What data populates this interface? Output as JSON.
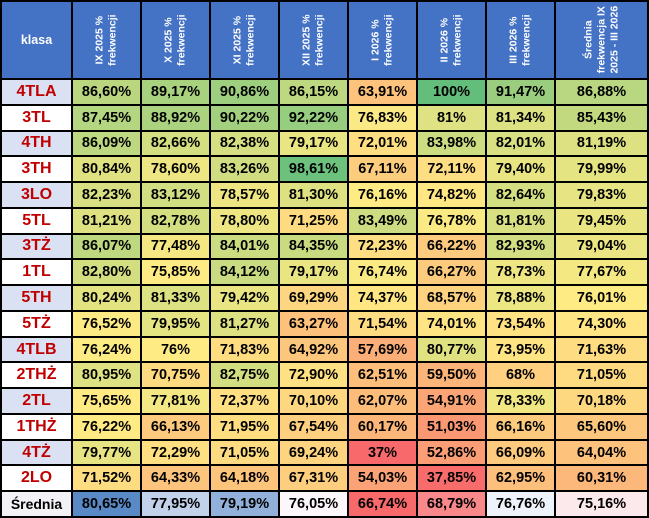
{
  "table": {
    "corner_label": "klasa",
    "columns": [
      "IX 2025 % frekwencji",
      "X 2025 % frekwencji",
      "XI 2025 % frekwencji",
      "XII 2025 % frekwencji",
      "I 2026 % frekwencji",
      "II 2026 % frekwencji",
      "III 2026 % frekwencji",
      "Średnia frekwencja IX 2025 - III 2026"
    ],
    "rows": [
      {
        "label": "4TLA",
        "values": [
          "86,60%",
          "89,17%",
          "90,86%",
          "86,15%",
          "63,91%",
          "100%",
          "91,47%",
          "86,88%"
        ]
      },
      {
        "label": "3TL",
        "values": [
          "87,45%",
          "88,92%",
          "90,22%",
          "92,22%",
          "76,83%",
          "81%",
          "81,34%",
          "85,43%"
        ]
      },
      {
        "label": "4TH",
        "values": [
          "86,09%",
          "82,66%",
          "82,38%",
          "79,17%",
          "72,01%",
          "83,98%",
          "82,01%",
          "81,19%"
        ]
      },
      {
        "label": "3TH",
        "values": [
          "80,84%",
          "78,60%",
          "83,26%",
          "98,61%",
          "67,11%",
          "72,11%",
          "79,40%",
          "79,99%"
        ]
      },
      {
        "label": "3LO",
        "values": [
          "82,23%",
          "83,12%",
          "78,57%",
          "81,30%",
          "76,16%",
          "74,82%",
          "82,64%",
          "79,83%"
        ]
      },
      {
        "label": "5TL",
        "values": [
          "81,21%",
          "82,78%",
          "78,80%",
          "71,25%",
          "83,49%",
          "76,78%",
          "81,81%",
          "79,45%"
        ]
      },
      {
        "label": "3TŻ",
        "values": [
          "86,07%",
          "77,48%",
          "84,01%",
          "84,35%",
          "72,23%",
          "66,22%",
          "82,93%",
          "79,04%"
        ]
      },
      {
        "label": "1TL",
        "values": [
          "82,80%",
          "75,85%",
          "84,12%",
          "79,17%",
          "76,74%",
          "66,27%",
          "78,73%",
          "77,67%"
        ]
      },
      {
        "label": "5TH",
        "values": [
          "80,24%",
          "81,33%",
          "79,42%",
          "69,29%",
          "74,37%",
          "68,57%",
          "78,88%",
          "76,01%"
        ]
      },
      {
        "label": "5TŻ",
        "values": [
          "76,52%",
          "79,95%",
          "81,27%",
          "63,27%",
          "71,54%",
          "74,01%",
          "73,54%",
          "74,30%"
        ]
      },
      {
        "label": "4TLB",
        "values": [
          "76,24%",
          "76%",
          "71,83%",
          "64,92%",
          "57,69%",
          "80,77%",
          "73,95%",
          "71,63%"
        ]
      },
      {
        "label": "2THŻ",
        "values": [
          "80,95%",
          "70,75%",
          "82,75%",
          "72,90%",
          "62,51%",
          "59,50%",
          "68%",
          "71,05%"
        ]
      },
      {
        "label": "2TL",
        "values": [
          "75,65%",
          "77,81%",
          "72,37%",
          "70,10%",
          "62,07%",
          "54,91%",
          "78,33%",
          "70,18%"
        ]
      },
      {
        "label": "1THŻ",
        "values": [
          "76,22%",
          "66,13%",
          "71,95%",
          "67,54%",
          "60,17%",
          "51,03%",
          "66,16%",
          "65,60%"
        ]
      },
      {
        "label": "4TŻ",
        "values": [
          "79,77%",
          "72,29%",
          "71,05%",
          "69,24%",
          "37%",
          "52,86%",
          "66,09%",
          "64,04%"
        ]
      },
      {
        "label": "2LO",
        "values": [
          "71,52%",
          "64,33%",
          "64,18%",
          "67,31%",
          "54,03%",
          "37,85%",
          "62,95%",
          "60,31%"
        ]
      }
    ],
    "footer": {
      "label": "Średnia",
      "values": [
        "80,65%",
        "77,95%",
        "79,19%",
        "76,05%",
        "66,74%",
        "68,79%",
        "76,76%",
        "75,16%"
      ]
    }
  },
  "colors": {
    "header_bg": "#4472C4",
    "header_text": "#FFFFFF",
    "row_label_text": "#C00000",
    "row_label_bg_even": "#D9E1F2",
    "row_label_bg_odd": "#FFFFFF",
    "footer_label_bg": "#F1F1F6",
    "grid": "#000000"
  },
  "conditional_formatting": {
    "body_scale": {
      "min": 37,
      "mid": 76,
      "max": 100,
      "low": "#F8696B",
      "middle": "#FFEB84",
      "high": "#63BE7B"
    },
    "footer_scale": {
      "min": 66.74,
      "mid": 76.4,
      "max": 80.65,
      "low": "#F8696B",
      "middle": "#FCFCFF",
      "high": "#5A8AC6"
    }
  }
}
